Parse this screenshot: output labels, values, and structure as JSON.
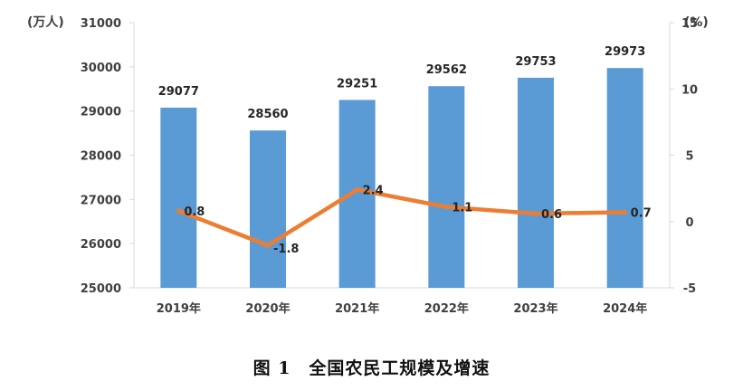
{
  "chart_data": {
    "type": "bar+line",
    "categories": [
      "2019年",
      "2020年",
      "2021年",
      "2022年",
      "2023年",
      "2024年"
    ],
    "bar_series": {
      "values": [
        29077,
        28560,
        29251,
        29562,
        29753,
        29973
      ],
      "labels": [
        "29077",
        "28560",
        "29251",
        "29562",
        "29753",
        "29973"
      ],
      "color": "#5b9bd5"
    },
    "line_series": {
      "values": [
        0.8,
        -1.8,
        2.4,
        1.1,
        0.6,
        0.7
      ],
      "labels": [
        "0.8",
        "-1.8",
        "2.4",
        "1.1",
        "0.6",
        "0.7"
      ],
      "color": "#ed7d31"
    },
    "y_left": {
      "unit": "(万人)",
      "range": [
        25000,
        31000
      ],
      "ticks": [
        {
          "value": 25000,
          "label": "25000"
        },
        {
          "value": 26000,
          "label": "26000"
        },
        {
          "value": 27000,
          "label": "27000"
        },
        {
          "value": 28000,
          "label": "28000"
        },
        {
          "value": 29000,
          "label": "29000"
        },
        {
          "value": 30000,
          "label": "30000"
        },
        {
          "value": 31000,
          "label": "31000"
        }
      ]
    },
    "y_right": {
      "unit": "(%)",
      "range": [
        -5,
        15
      ],
      "ticks": [
        {
          "value": -5,
          "label": "-5"
        },
        {
          "value": 0,
          "label": "0"
        },
        {
          "value": 5,
          "label": "5"
        },
        {
          "value": 10,
          "label": "10"
        },
        {
          "value": 15,
          "label": "15"
        }
      ]
    },
    "grid": false,
    "legend": "none",
    "caption": "图 1　全国农民工规模及增速"
  }
}
